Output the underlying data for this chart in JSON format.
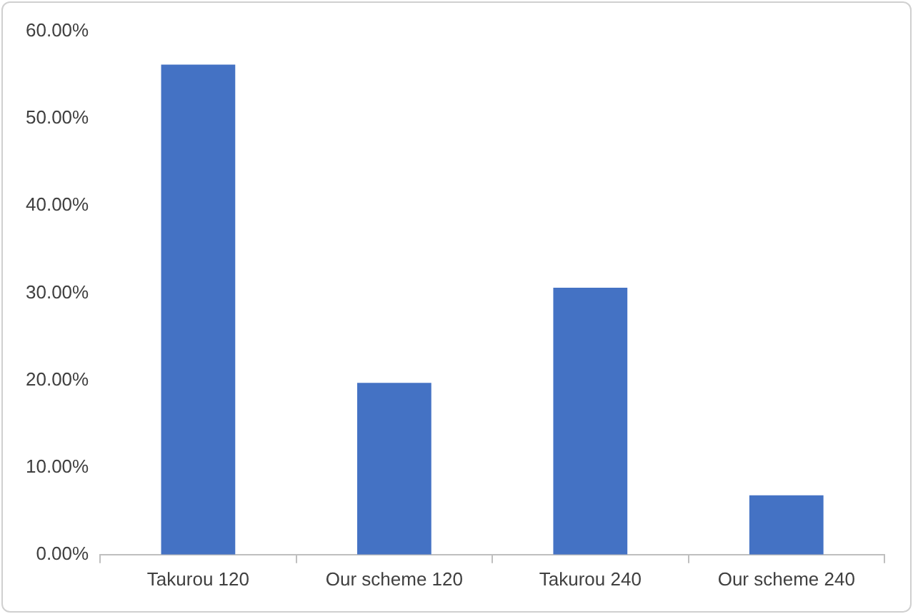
{
  "chart_data": {
    "type": "bar",
    "categories": [
      "Takurou 120",
      "Our scheme 120",
      "Takurou 240",
      "Our scheme 240"
    ],
    "values": [
      56.2,
      19.7,
      30.6,
      6.8
    ],
    "color": "#4472c4",
    "ylim": [
      0,
      60
    ],
    "yticks": [
      {
        "value": 0,
        "label": "0.00%"
      },
      {
        "value": 10,
        "label": "10.00%"
      },
      {
        "value": 20,
        "label": "20.00%"
      },
      {
        "value": 30,
        "label": "30.00%"
      },
      {
        "value": 40,
        "label": "40.00%"
      },
      {
        "value": 50,
        "label": "50.00%"
      },
      {
        "value": 60,
        "label": "60.00%"
      }
    ],
    "grid": false,
    "legend": false
  }
}
